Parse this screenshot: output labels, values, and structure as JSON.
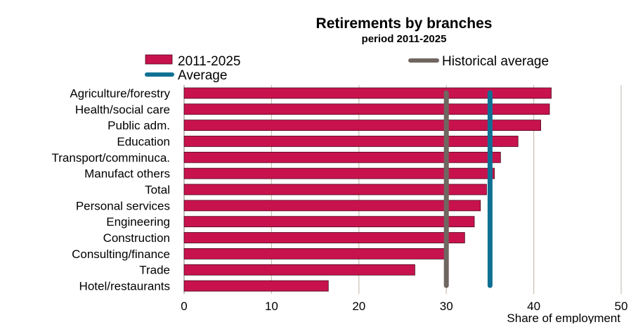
{
  "chart_data": {
    "type": "bar",
    "orientation": "horizontal",
    "title": "Retirements by branches",
    "subtitle": "period 2011-2025",
    "xlabel": "Share of employment",
    "ylabel": "",
    "xlim": [
      0,
      50
    ],
    "xticks": [
      0,
      10,
      20,
      30,
      40,
      50
    ],
    "grid": "vertical",
    "legend_placement": "top",
    "categories": [
      "Agriculture/forestry",
      "Health/social care",
      "Public adm.",
      "Education",
      "Transport/comminuca.",
      "Manufact others",
      "Total",
      "Personal services",
      "Engineering",
      "Construction",
      "Consulting/finance",
      "Trade",
      "Hotel/restaurants"
    ],
    "series": [
      {
        "name": "2011-2025",
        "values": [
          42.0,
          41.8,
          40.8,
          38.2,
          36.2,
          35.5,
          34.6,
          33.9,
          33.2,
          32.1,
          29.8,
          26.4,
          16.5
        ],
        "color": "#c8124d"
      }
    ],
    "reference_lines": [
      {
        "name": "Historical average",
        "value": 30,
        "color": "#706660"
      },
      {
        "name": "Average",
        "value": 35,
        "color": "#0f7094"
      }
    ]
  }
}
